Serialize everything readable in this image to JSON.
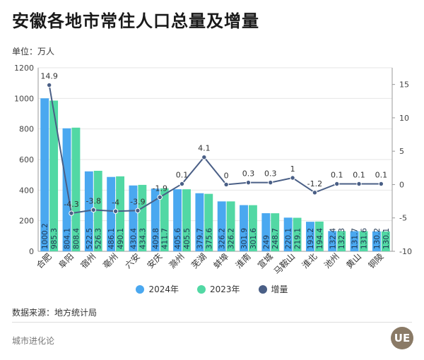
{
  "header": {
    "title": "安徽各地市常住人口总量及增量",
    "unit_label": "单位：万人"
  },
  "legend": {
    "items": [
      {
        "label": "2024年",
        "color": "#4aa8f0"
      },
      {
        "label": "2023年",
        "color": "#52d8a4"
      },
      {
        "label": "增量",
        "color": "#4a5f86"
      }
    ]
  },
  "footer": {
    "source": "数据来源：地方统计局",
    "brand": "城市进化论",
    "logo_text": "UE"
  },
  "chart_data": {
    "type": "bar",
    "categories": [
      "合肥",
      "阜阳",
      "宿州",
      "亳州",
      "六安",
      "安庆",
      "滁州",
      "芜湖",
      "蚌埠",
      "淮南",
      "宣城",
      "马鞍山",
      "淮北",
      "池州",
      "黄山",
      "铜陵"
    ],
    "series": [
      {
        "name": "2024年",
        "type": "bar",
        "axis": "left",
        "color": "#4aa8f0",
        "values": [
          1000.2,
          804.1,
          522.5,
          486.1,
          430.4,
          409.8,
          405.6,
          379.7,
          326.2,
          301.9,
          249,
          220.1,
          193.2,
          132.4,
          131.7,
          130.2
        ],
        "labels": [
          "1000.2",
          "804.1",
          "522.5",
          "486.1",
          "430.4",
          "409.8",
          "405.6",
          "379.7",
          "326.2",
          "301.9",
          "249",
          "220.1",
          "193.2",
          "132.4",
          "131.7",
          "130.2"
        ]
      },
      {
        "name": "2023年",
        "type": "bar",
        "axis": "left",
        "color": "#52d8a4",
        "values": [
          985.3,
          808.4,
          526.3,
          490.1,
          434.3,
          411.7,
          405.5,
          375.6,
          326.2,
          301.6,
          248.7,
          219.1,
          194.4,
          132.3,
          131.6,
          130.1
        ],
        "labels": [
          "985.3",
          "808.4",
          "526.3",
          "490.1",
          "434.3",
          "411.7",
          "405.5",
          "375.6",
          "326.2",
          "301.6",
          "248.7",
          "219.1",
          "194.4",
          "132.3",
          "131.6",
          "130.1"
        ]
      },
      {
        "name": "增量",
        "type": "line",
        "axis": "right",
        "color": "#4a5f86",
        "values": [
          14.9,
          -4.3,
          -3.8,
          -4,
          -3.9,
          -1.9,
          0.1,
          4.1,
          0,
          0.3,
          0.3,
          1,
          -1.2,
          0.1,
          0.1,
          0.1
        ],
        "labels": [
          "14.9",
          "-4.3",
          "-3.8",
          "-4",
          "-3.9",
          "-1.9",
          "0.1",
          "4.1",
          "0",
          "0.3",
          "0.3",
          "1",
          "-1.2",
          "0.1",
          "0.1",
          "0.1"
        ]
      }
    ],
    "ylim_left": [
      0,
      1200
    ],
    "yticks_left": [
      "0",
      "200",
      "400",
      "600",
      "800",
      "1000",
      "1200"
    ],
    "ylim_right": [
      -10,
      17.5
    ],
    "yticks_right": [
      "-10",
      "-5",
      "0",
      "5",
      "10",
      "15"
    ],
    "grid": true,
    "legend_position": "bottom"
  }
}
